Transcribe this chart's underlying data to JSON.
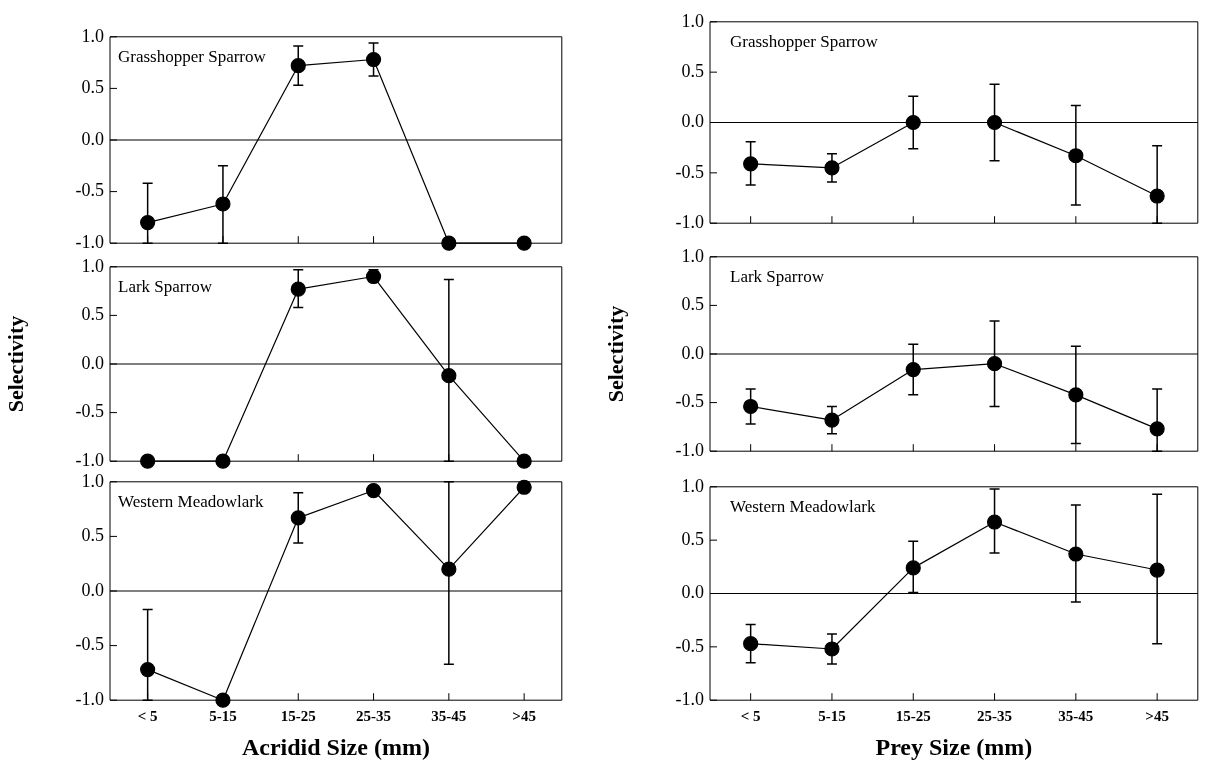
{
  "chart_data": [
    {
      "type": "line",
      "title": "Grasshopper Sparrow",
      "categories": [
        null,
        null,
        null,
        null,
        null,
        null
      ],
      "tick_labels": "y",
      "ylim": [
        -1.0,
        1.0
      ],
      "yticks": [
        {
          "value": -1,
          "label": "-1.0"
        },
        {
          "value": -0.5,
          "label": "-0.5"
        },
        {
          "value": 0,
          "label": "0.0"
        },
        {
          "value": 0.5,
          "label": "0.5"
        },
        {
          "value": 1,
          "label": "1.0"
        }
      ],
      "grid": false,
      "legend": false,
      "marker": "circle",
      "ref_lines": [
        {
          "axis": "y",
          "value": 0,
          "color": "#000000"
        }
      ],
      "series": [
        {
          "color": "#000000",
          "values": [
            -0.8,
            -0.62,
            0.72,
            0.78,
            -1.0,
            -1.0
          ],
          "errors": [
            [
              -1.0,
              -0.42
            ],
            [
              -1.0,
              -0.25
            ],
            [
              0.53,
              0.91
            ],
            [
              0.62,
              0.94
            ],
            null,
            null
          ]
        }
      ]
    },
    {
      "type": "line",
      "title": "Lark Sparrow",
      "ylabel": "Selectivity",
      "categories": [
        null,
        null,
        null,
        null,
        null,
        null
      ],
      "tick_labels": "y",
      "ylim": [
        -1.0,
        1.0
      ],
      "yticks": [
        {
          "value": -1,
          "label": "-1.0"
        },
        {
          "value": -0.5,
          "label": "-0.5"
        },
        {
          "value": 0,
          "label": "0.0"
        },
        {
          "value": 0.5,
          "label": "0.5"
        },
        {
          "value": 1,
          "label": "1.0"
        }
      ],
      "grid": false,
      "legend": false,
      "marker": "circle",
      "ref_lines": [
        {
          "axis": "y",
          "value": 0,
          "color": "#000000"
        }
      ],
      "series": [
        {
          "color": "#000000",
          "values": [
            -1.0,
            -1.0,
            0.77,
            0.9,
            -0.12,
            -1.0
          ],
          "errors": [
            null,
            null,
            [
              0.58,
              0.97
            ],
            [
              0.85,
              0.97
            ],
            [
              -1.0,
              0.87
            ],
            null
          ]
        }
      ]
    },
    {
      "type": "line",
      "title": "Western Meadowlark",
      "xlabel": "Acridid Size (mm)",
      "categories": [
        "< 5",
        "5-15",
        "15-25",
        "25-35",
        "35-45",
        ">45"
      ],
      "ylim": [
        -1.0,
        1.0
      ],
      "yticks": [
        {
          "value": -1,
          "label": "-1.0"
        },
        {
          "value": -0.5,
          "label": "-0.5"
        },
        {
          "value": 0,
          "label": "0.0"
        },
        {
          "value": 0.5,
          "label": "0.5"
        },
        {
          "value": 1,
          "label": "1.0"
        }
      ],
      "grid": false,
      "legend": false,
      "marker": "circle",
      "ref_lines": [
        {
          "axis": "y",
          "value": 0,
          "color": "#000000"
        }
      ],
      "series": [
        {
          "color": "#000000",
          "values": [
            -0.72,
            -1.0,
            0.67,
            0.92,
            0.2,
            0.95
          ],
          "errors": [
            [
              -1.0,
              -0.17
            ],
            null,
            [
              0.44,
              0.9
            ],
            null,
            [
              -0.67,
              1.0
            ],
            null
          ]
        }
      ]
    },
    {
      "type": "line",
      "title": "Grasshopper Sparrow",
      "categories": [
        null,
        null,
        null,
        null,
        null,
        null
      ],
      "tick_labels": "y",
      "ylim": [
        -1.0,
        1.0
      ],
      "yticks": [
        {
          "value": -1,
          "label": "-1.0"
        },
        {
          "value": -0.5,
          "label": "-0.5"
        },
        {
          "value": 0,
          "label": "0.0"
        },
        {
          "value": 0.5,
          "label": "0.5"
        },
        {
          "value": 1,
          "label": "1.0"
        }
      ],
      "grid": false,
      "legend": false,
      "marker": "circle",
      "ref_lines": [
        {
          "axis": "y",
          "value": 0,
          "color": "#000000"
        }
      ],
      "series": [
        {
          "color": "#000000",
          "values": [
            -0.41,
            -0.45,
            0.0,
            0.0,
            -0.33,
            -0.73
          ],
          "errors": [
            [
              -0.62,
              -0.19
            ],
            [
              -0.59,
              -0.31
            ],
            [
              -0.26,
              0.26
            ],
            [
              -0.38,
              0.38
            ],
            [
              -0.82,
              0.17
            ],
            [
              -1.0,
              -0.23
            ]
          ]
        }
      ]
    },
    {
      "type": "line",
      "title": "Lark Sparrow",
      "ylabel": "Selectivity",
      "categories": [
        null,
        null,
        null,
        null,
        null,
        null
      ],
      "tick_labels": "y",
      "ylim": [
        -1.0,
        1.0
      ],
      "yticks": [
        {
          "value": -1,
          "label": "-1.0"
        },
        {
          "value": -0.5,
          "label": "-0.5"
        },
        {
          "value": 0,
          "label": "0.0"
        },
        {
          "value": 0.5,
          "label": "0.5"
        },
        {
          "value": 1,
          "label": "1.0"
        }
      ],
      "grid": false,
      "legend": false,
      "marker": "circle",
      "ref_lines": [
        {
          "axis": "y",
          "value": 0,
          "color": "#000000"
        }
      ],
      "series": [
        {
          "color": "#000000",
          "values": [
            -0.54,
            -0.68,
            -0.16,
            -0.1,
            -0.42,
            -0.77
          ],
          "errors": [
            [
              -0.72,
              -0.36
            ],
            [
              -0.82,
              -0.54
            ],
            [
              -0.42,
              0.1
            ],
            [
              -0.54,
              0.34
            ],
            [
              -0.92,
              0.08
            ],
            [
              -1.0,
              -0.36
            ]
          ]
        }
      ]
    },
    {
      "type": "line",
      "title": "Western Meadowlark",
      "xlabel": "Prey Size (mm)",
      "categories": [
        "< 5",
        "5-15",
        "15-25",
        "25-35",
        "35-45",
        ">45"
      ],
      "ylim": [
        -1.0,
        1.0
      ],
      "yticks": [
        {
          "value": -1,
          "label": "-1.0"
        },
        {
          "value": -0.5,
          "label": "-0.5"
        },
        {
          "value": 0,
          "label": "0.0"
        },
        {
          "value": 0.5,
          "label": "0.5"
        },
        {
          "value": 1,
          "label": "1.0"
        }
      ],
      "grid": false,
      "legend": false,
      "marker": "circle",
      "ref_lines": [
        {
          "axis": "y",
          "value": 0,
          "color": "#000000"
        }
      ],
      "series": [
        {
          "color": "#000000",
          "values": [
            -0.47,
            -0.52,
            0.24,
            0.67,
            0.37,
            0.22
          ],
          "errors": [
            [
              -0.65,
              -0.29
            ],
            [
              -0.66,
              -0.38
            ],
            [
              0.01,
              0.49
            ],
            [
              0.38,
              0.98
            ],
            [
              -0.08,
              0.83
            ],
            [
              -0.47,
              0.93
            ]
          ]
        }
      ]
    }
  ]
}
